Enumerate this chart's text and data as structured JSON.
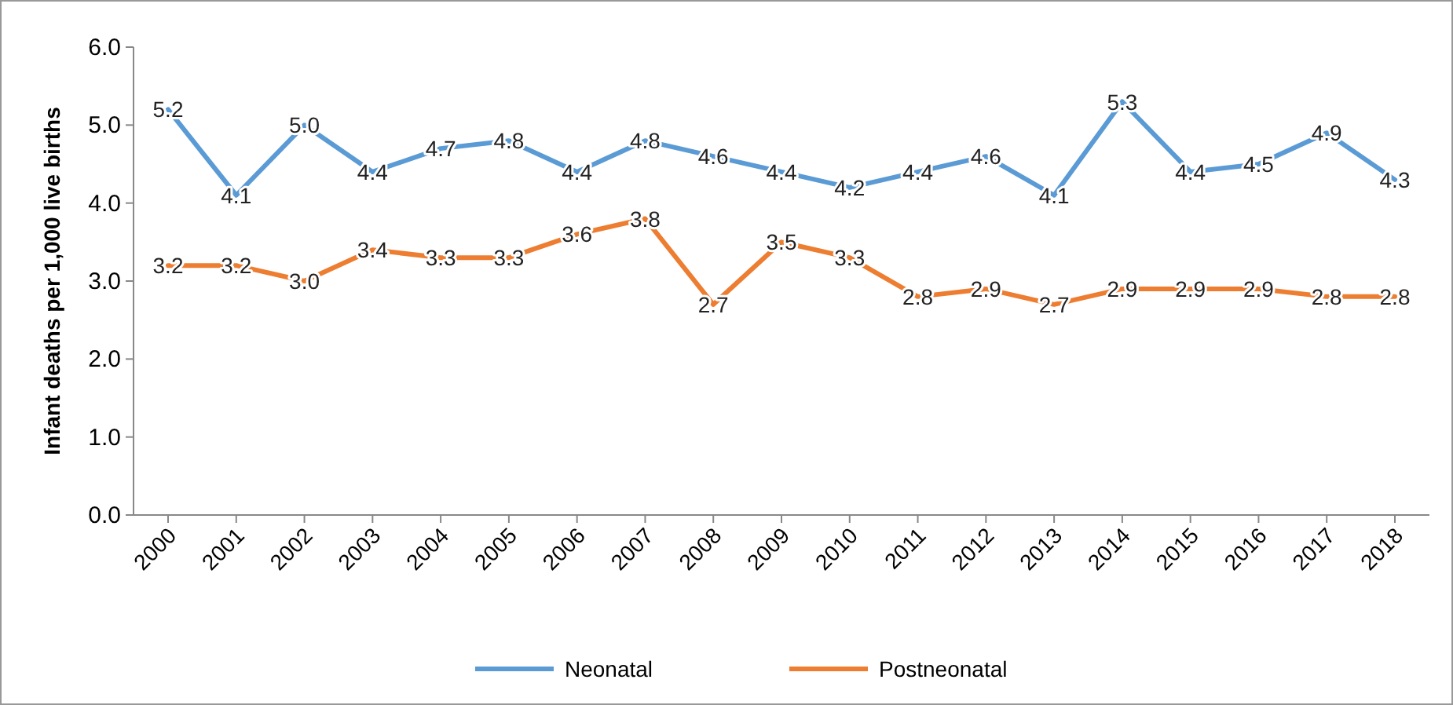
{
  "chart_data": {
    "type": "line",
    "ylabel": "Infant deaths per 1,000 live births",
    "categories": [
      "2000",
      "2001",
      "2002",
      "2003",
      "2004",
      "2005",
      "2006",
      "2007",
      "2008",
      "2009",
      "2010",
      "2011",
      "2012",
      "2013",
      "2014",
      "2015",
      "2016",
      "2017",
      "2018"
    ],
    "series": [
      {
        "name": "Neonatal",
        "color": "#5b9bd5",
        "values": [
          5.2,
          4.1,
          5.0,
          4.4,
          4.7,
          4.8,
          4.4,
          4.8,
          4.6,
          4.4,
          4.2,
          4.4,
          4.6,
          4.1,
          5.3,
          4.4,
          4.5,
          4.9,
          4.3
        ],
        "value_labels": [
          "5.2",
          "4.1",
          "5.0",
          "4.4",
          "4.7",
          "4.8",
          "4.4",
          "4.8",
          "4.6",
          "4.4",
          "4.2",
          "4.4",
          "4.6",
          "4.1",
          "5.3",
          "4.4",
          "4.5",
          "4.9",
          "4.3"
        ]
      },
      {
        "name": "Postneonatal",
        "color": "#ed7d31",
        "values": [
          3.2,
          3.2,
          3.0,
          3.4,
          3.3,
          3.3,
          3.6,
          3.8,
          2.7,
          3.5,
          3.3,
          2.8,
          2.9,
          2.7,
          2.9,
          2.9,
          2.9,
          2.8,
          2.8
        ],
        "value_labels": [
          "3.2",
          "3.2",
          "3.0",
          "3.4",
          "3.3",
          "3.3",
          "3.6",
          "3.8",
          "2.7",
          "3.5",
          "3.3",
          "2.8",
          "2.9",
          "2.7",
          "2.9",
          "2.9",
          "2.9",
          "2.8",
          "2.8"
        ]
      }
    ],
    "ylim": [
      0,
      6
    ],
    "yticks": [
      {
        "value": 0,
        "label": "0.0"
      },
      {
        "value": 1,
        "label": "1.0"
      },
      {
        "value": 2,
        "label": "2.0"
      },
      {
        "value": 3,
        "label": "3.0"
      },
      {
        "value": 4,
        "label": "4.0"
      },
      {
        "value": 5,
        "label": "5.0"
      },
      {
        "value": 6,
        "label": "6.0"
      }
    ],
    "legend": "bottom"
  }
}
